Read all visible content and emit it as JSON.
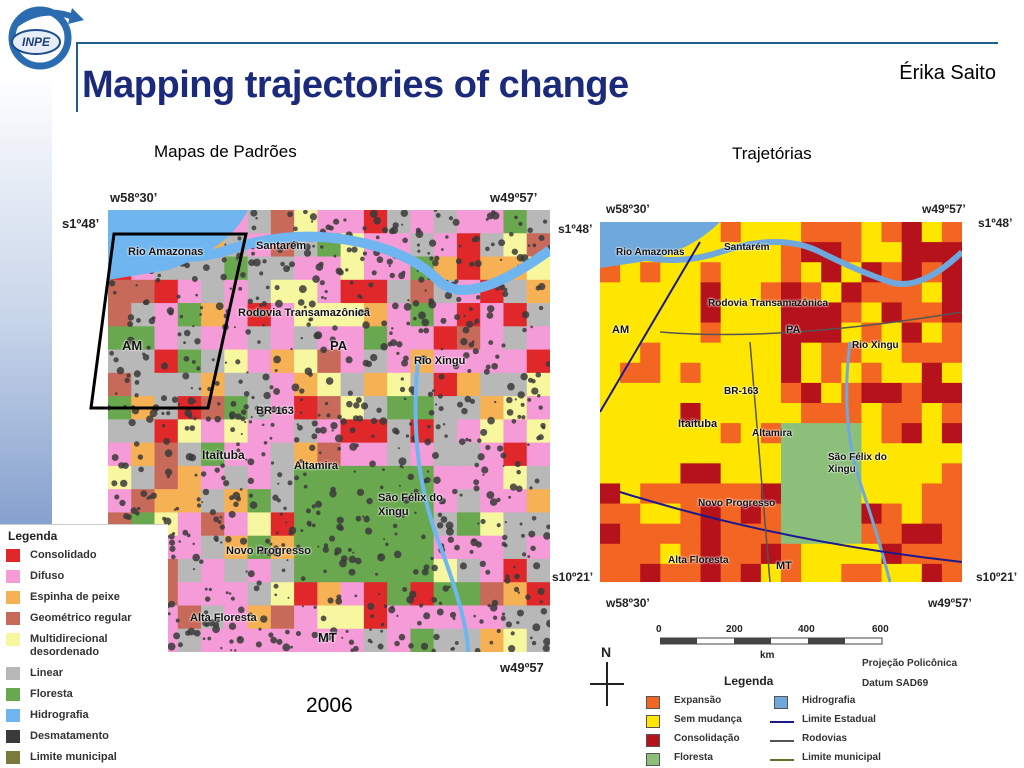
{
  "header": {
    "logo_text": "INPE",
    "title": "Mapping trajectories of change",
    "author": "Érika Saito"
  },
  "left_map": {
    "caption": "Mapas de Padrões",
    "year": "2006",
    "coords": {
      "top_left": "w58º30’",
      "top_right": "w49º57’",
      "lat_top": "s1º48’",
      "bottom_right": "w49º57"
    },
    "places": [
      "Santarém",
      "Rio Amazonas",
      "Rodovia Transamazônica",
      "AM",
      "PA",
      "Rio Xingu",
      "BR-163",
      "Itaituba",
      "Altamira",
      "São Félix do Xingu",
      "Novo Progresso",
      "Alta Floresta",
      "MT"
    ],
    "legend_title": "Legenda",
    "legend": [
      {
        "label": "Consolidado",
        "color": "#e0282a"
      },
      {
        "label": "Difuso",
        "color": "#f59bd8"
      },
      {
        "label": "Espinha de peixe",
        "color": "#f5b153"
      },
      {
        "label": "Geométrico regular",
        "color": "#c86a5a"
      },
      {
        "label": "Multidirecional desordenado",
        "color": "#f7f7a0"
      },
      {
        "label": "Linear",
        "color": "#b8b8b8"
      },
      {
        "label": "Floresta",
        "color": "#6aa84f"
      },
      {
        "label": "Hidrografia",
        "color": "#6fb6f0"
      },
      {
        "label": "Desmatamento",
        "color": "#3a3a3a"
      },
      {
        "label": "Limite municipal",
        "color": "#7a7a3a"
      }
    ]
  },
  "right_map": {
    "caption": "Trajetórias",
    "coords": {
      "top_left": "w58º30’",
      "top_right": "w49º57’",
      "lat_top_left": "s1º48’",
      "lat_top_right": "s1º48’",
      "lat_bottom_left": "s10º21’",
      "lat_bottom_right": "s10º21’",
      "bottom_left": "w58º30’",
      "bottom_right": "w49º57’"
    },
    "places": [
      "Rio Amazonas",
      "Santarém",
      "Rodovia Transamazônica",
      "AM",
      "PA",
      "Rio Xingu",
      "BR-163",
      "Itaituba",
      "Altamira",
      "São Félix do Xingu",
      "Novo Progresso",
      "Alta Floresta",
      "MT"
    ],
    "scale": {
      "ticks": [
        "0",
        "200",
        "400",
        "600"
      ],
      "unit": "km"
    },
    "north": "N",
    "projection": "Projeção Policônica",
    "datum": "Datum SAD69",
    "legend_title": "Legenda",
    "legend_left": [
      {
        "label": "Expansão",
        "color": "#f26522"
      },
      {
        "label": "Sem mudança",
        "color": "#ffe600"
      },
      {
        "label": "Consolidação",
        "color": "#b5121b"
      },
      {
        "label": "Floresta",
        "color": "#8cbf7a"
      }
    ],
    "legend_right": [
      {
        "label": "Hidrografia",
        "color": "#6fa8dc",
        "kind": "box"
      },
      {
        "label": "Limite Estadual",
        "color": "#1a1a8c",
        "kind": "line"
      },
      {
        "label": "Rodovias",
        "color": "#555555",
        "kind": "line"
      },
      {
        "label": "Limite municipal",
        "color": "#6b6b2a",
        "kind": "line"
      }
    ]
  }
}
